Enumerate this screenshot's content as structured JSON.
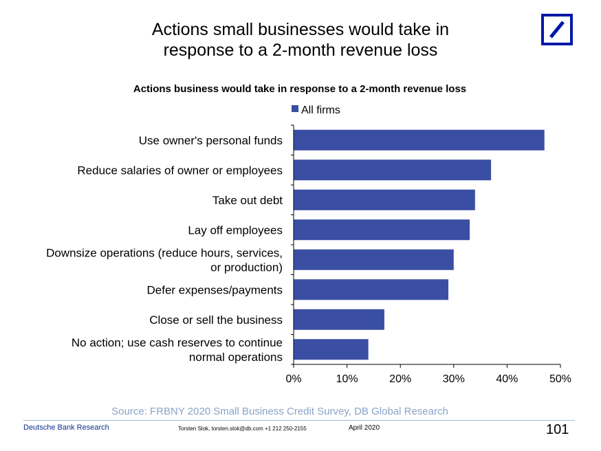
{
  "slide": {
    "title_line1": "Actions small businesses would take in",
    "title_line2": "response to a 2-month revenue loss",
    "source": "Source: FRBNY 2020 Small Business Credit Survey, DB Global  Research",
    "footer_left": "Deutsche Bank Research",
    "footer_contact": "Torsten Slok, torsten.slok@db.com  +1 212 250-2155",
    "footer_date": "April 2020",
    "page_number": "101"
  },
  "colors": {
    "bar": "#3a4fa3",
    "logo": "#0018a8"
  },
  "chart_data": {
    "type": "bar",
    "orientation": "horizontal",
    "title": "Actions business would take in response to a 2-month revenue loss",
    "categories": [
      [
        "Use owner's personal funds"
      ],
      [
        "Reduce salaries of owner or employees"
      ],
      [
        "Take out debt"
      ],
      [
        "Lay off employees"
      ],
      [
        "Downsize operations (reduce hours, services,",
        "or production)"
      ],
      [
        "Defer expenses/payments"
      ],
      [
        "Close or sell the business"
      ],
      [
        "No action; use cash reserves to continue",
        "normal operations"
      ]
    ],
    "series": [
      {
        "name": "All firms",
        "values": [
          47,
          37,
          34,
          33,
          30,
          29,
          17,
          14
        ]
      }
    ],
    "xlim": [
      0,
      50
    ],
    "xticks": [
      0,
      10,
      20,
      30,
      40,
      50
    ],
    "tick_labels": [
      "0%",
      "10%",
      "20%",
      "30%",
      "40%",
      "50%"
    ],
    "legend_position": "top",
    "grid": false
  }
}
